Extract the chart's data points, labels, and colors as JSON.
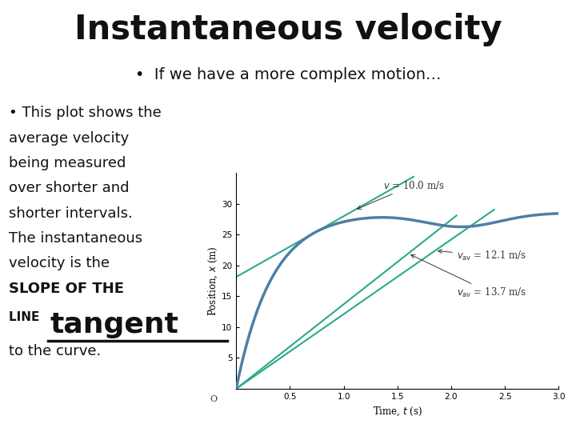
{
  "title": "Instantaneous velocity",
  "bullet1": "•  If we have a more complex motion…",
  "body_lines": [
    "• This plot shows the",
    "average velocity",
    "being measured",
    "over shorter and",
    "shorter intervals.",
    "The instantaneous",
    "velocity is the"
  ],
  "slope_line": "SLOPE OF THE",
  "line_prefix": "LINE ",
  "tangent_word": "tangent",
  "final_line": "to the curve.",
  "xlabel": "Time, $t$ (s)",
  "ylabel": "Position, $x$ (m)",
  "xlim": [
    0,
    3
  ],
  "ylim": [
    0,
    35
  ],
  "yticks": [
    5,
    10,
    15,
    20,
    25,
    30
  ],
  "xticks": [
    0.5,
    1,
    1.5,
    2,
    2.5,
    3
  ],
  "curve_color": "#4d7fa6",
  "line_color": "#2aaa8a",
  "ann_color": "#333333",
  "bg_color": "#ffffff",
  "title_fontsize": 30,
  "bullet1_fontsize": 14,
  "body_fontsize": 13,
  "slope_fontsize": 13,
  "line_prefix_fontsize": 11,
  "tangent_fontsize": 26,
  "final_fontsize": 13,
  "ann_fontsize": 8.5
}
